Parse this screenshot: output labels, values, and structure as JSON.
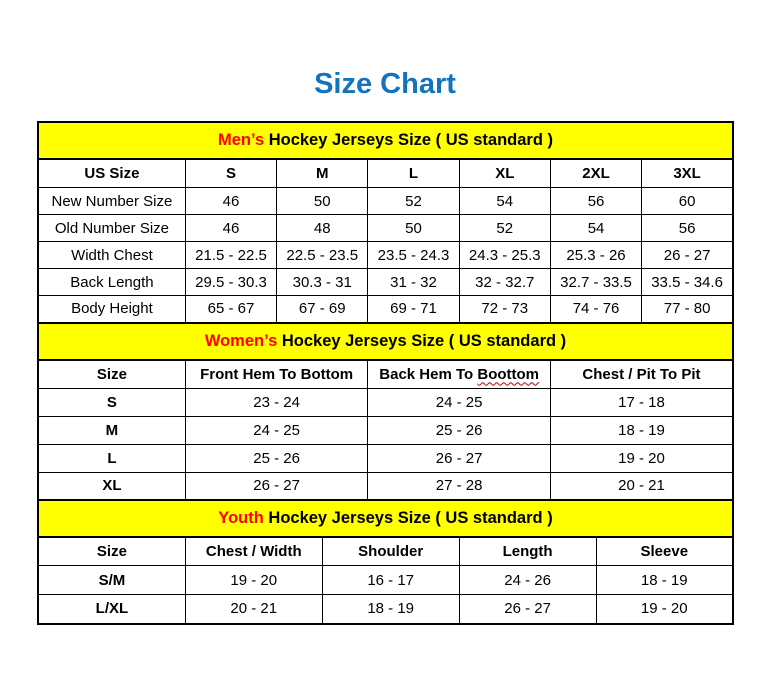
{
  "page": {
    "title": "Size Chart"
  },
  "colors": {
    "title_blue": "#1273bf",
    "section_bar_bg": "#ffff00",
    "accent_red": "#ff0000",
    "border": "#000000",
    "spellcheck_underline_red": "#c00000"
  },
  "sections": [
    {
      "id": "mens",
      "title_accent": "Men’s",
      "title_rest": " Hockey Jerseys Size ( US standard )",
      "columns": [
        "US Size",
        "S",
        "M",
        "L",
        "XL",
        "2XL",
        "3XL"
      ],
      "rows": [
        {
          "label": "New Number Size",
          "values": [
            "46",
            "50",
            "52",
            "54",
            "56",
            "60"
          ]
        },
        {
          "label": "Old Number Size",
          "values": [
            "46",
            "48",
            "50",
            "52",
            "54",
            "56"
          ]
        },
        {
          "label": "Width Chest",
          "values": [
            "21.5 - 22.5",
            "22.5 - 23.5",
            "23.5 - 24.3",
            "24.3 - 25.3",
            "25.3 - 26",
            "26 - 27"
          ]
        },
        {
          "label": "Back Length",
          "values": [
            "29.5 - 30.3",
            "30.3 - 31",
            "31 - 32",
            "32 - 32.7",
            "32.7 - 33.5",
            "33.5 - 34.6"
          ]
        },
        {
          "label": "Body Height",
          "values": [
            "65 - 67",
            "67 - 69",
            "69 - 71",
            "72 - 73",
            "74 - 76",
            "77 - 80"
          ]
        }
      ]
    },
    {
      "id": "womens",
      "title_accent": "Women’s",
      "title_rest": " Hockey Jerseys Size ( US standard )",
      "columns": [
        "Size",
        "Front Hem To Bottom",
        {
          "pre": "Back Hem To ",
          "wavy": "Boottom"
        },
        "Chest / Pit To Pit"
      ],
      "rows": [
        {
          "label": "S",
          "values": [
            "23 - 24",
            "24 - 25",
            "17 - 18"
          ]
        },
        {
          "label": "M",
          "values": [
            "24 - 25",
            "25 - 26",
            "18 - 19"
          ]
        },
        {
          "label": "L",
          "values": [
            "25 - 26",
            "26 - 27",
            "19 - 20"
          ]
        },
        {
          "label": "XL",
          "values": [
            "26 - 27",
            "27 - 28",
            "20 - 21"
          ]
        }
      ]
    },
    {
      "id": "youth",
      "title_accent": "Youth",
      "title_rest": " Hockey Jerseys Size ( US standard )",
      "columns": [
        "Size",
        "Chest / Width",
        "Shoulder",
        "Length",
        "Sleeve"
      ],
      "rows": [
        {
          "label": "S/M",
          "values": [
            "19 - 20",
            "16 - 17",
            "24 - 26",
            "18 - 19"
          ]
        },
        {
          "label": "L/XL",
          "values": [
            "20 - 21",
            "18 - 19",
            "26 - 27",
            "19 - 20"
          ]
        }
      ]
    }
  ]
}
